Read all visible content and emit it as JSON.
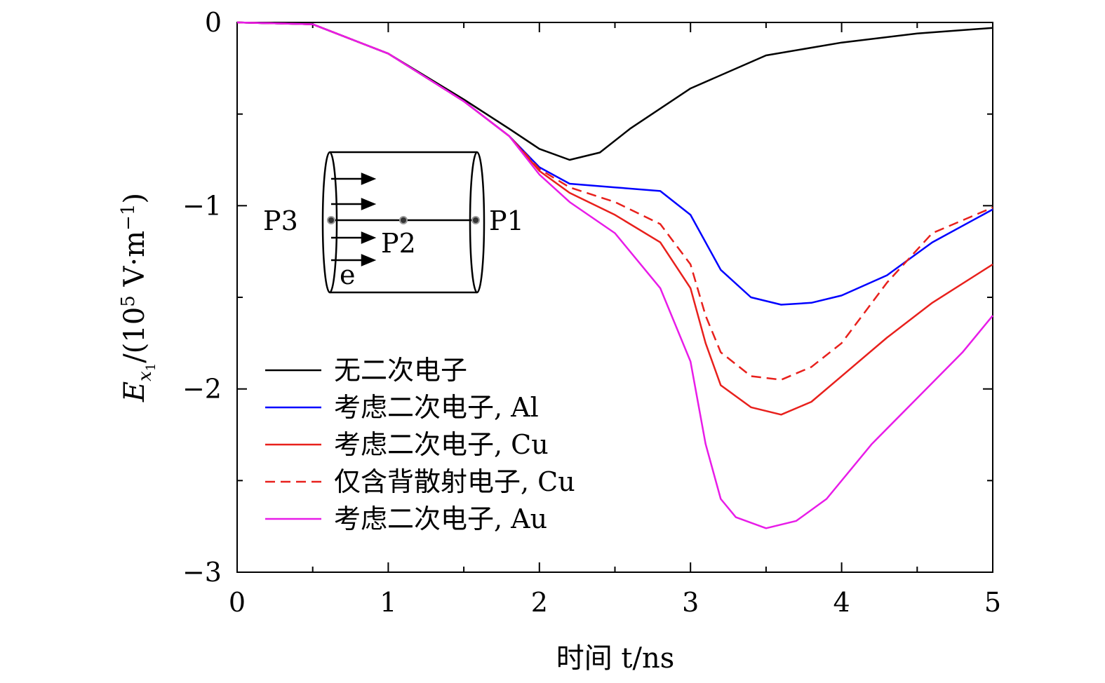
{
  "chart_data": {
    "type": "line",
    "title": "",
    "xlabel": "时间 t/ns",
    "ylabel": "E_x1/(10^5 V·m^-1)",
    "ylabel_parts": {
      "E": "E",
      "sub_x": "x",
      "sub_1": "1",
      "mid": "/(10",
      "exp5": "5",
      "units": " V·m",
      "exp_neg1": "−1",
      "close": ")"
    },
    "xlim": [
      0,
      5
    ],
    "ylim": [
      -3,
      0
    ],
    "x_ticks": [
      0,
      1,
      2,
      3,
      4,
      5
    ],
    "x_tick_labels": [
      "0",
      "1",
      "2",
      "3",
      "4",
      "5"
    ],
    "y_ticks": [
      0,
      -1,
      -2,
      -3
    ],
    "y_tick_labels": [
      "0",
      "−1",
      "−2",
      "−3"
    ],
    "legend_position": "lower-left",
    "series": [
      {
        "name": "无二次电子",
        "color": "#000000",
        "dash": "solid",
        "x": [
          0,
          0.5,
          1.0,
          1.5,
          1.8,
          2.0,
          2.2,
          2.4,
          2.6,
          3.0,
          3.5,
          4.0,
          4.5,
          5.0
        ],
        "y": [
          0,
          -0.01,
          -0.17,
          -0.42,
          -0.58,
          -0.69,
          -0.75,
          -0.71,
          -0.58,
          -0.36,
          -0.18,
          -0.11,
          -0.06,
          -0.03
        ]
      },
      {
        "name": "考虑二次电子, Al",
        "color": "#0000ff",
        "dash": "solid",
        "x": [
          0,
          0.5,
          1.0,
          1.5,
          1.8,
          2.0,
          2.2,
          2.5,
          2.8,
          3.0,
          3.2,
          3.4,
          3.6,
          3.8,
          4.0,
          4.3,
          4.6,
          5.0
        ],
        "y": [
          0,
          -0.01,
          -0.17,
          -0.43,
          -0.62,
          -0.79,
          -0.88,
          -0.9,
          -0.92,
          -1.05,
          -1.35,
          -1.5,
          -1.54,
          -1.53,
          -1.49,
          -1.38,
          -1.2,
          -1.02
        ]
      },
      {
        "name": "考虑二次电子, Cu",
        "color": "#e8201c",
        "dash": "solid",
        "x": [
          0,
          0.5,
          1.0,
          1.5,
          1.8,
          2.0,
          2.2,
          2.5,
          2.8,
          3.0,
          3.1,
          3.2,
          3.4,
          3.6,
          3.8,
          4.0,
          4.3,
          4.6,
          5.0
        ],
        "y": [
          0,
          -0.01,
          -0.17,
          -0.43,
          -0.62,
          -0.81,
          -0.93,
          -1.05,
          -1.2,
          -1.45,
          -1.75,
          -1.98,
          -2.1,
          -2.14,
          -2.07,
          -1.93,
          -1.72,
          -1.53,
          -1.32
        ]
      },
      {
        "name": "仅含背散射电子, Cu",
        "color": "#e8201c",
        "dash": "dashed",
        "x": [
          0,
          0.5,
          1.0,
          1.5,
          1.8,
          2.0,
          2.2,
          2.5,
          2.8,
          3.0,
          3.1,
          3.2,
          3.4,
          3.6,
          3.8,
          4.0,
          4.3,
          4.6,
          5.0
        ],
        "y": [
          0,
          -0.01,
          -0.17,
          -0.43,
          -0.62,
          -0.8,
          -0.9,
          -0.98,
          -1.1,
          -1.32,
          -1.6,
          -1.8,
          -1.93,
          -1.95,
          -1.88,
          -1.75,
          -1.42,
          -1.15,
          -1.01
        ]
      },
      {
        "name": "考虑二次电子, Au",
        "color": "#e81ce8",
        "dash": "solid",
        "x": [
          0,
          0.5,
          1.0,
          1.5,
          1.8,
          2.0,
          2.2,
          2.5,
          2.8,
          3.0,
          3.1,
          3.2,
          3.3,
          3.5,
          3.7,
          3.9,
          4.2,
          4.5,
          4.8,
          5.0
        ],
        "y": [
          0,
          -0.01,
          -0.17,
          -0.43,
          -0.62,
          -0.83,
          -0.98,
          -1.15,
          -1.45,
          -1.85,
          -2.3,
          -2.6,
          -2.7,
          -2.76,
          -2.72,
          -2.6,
          -2.3,
          -2.05,
          -1.8,
          -1.6
        ]
      }
    ],
    "inset": {
      "labels": [
        "P1",
        "P2",
        "P3",
        "e"
      ]
    }
  }
}
